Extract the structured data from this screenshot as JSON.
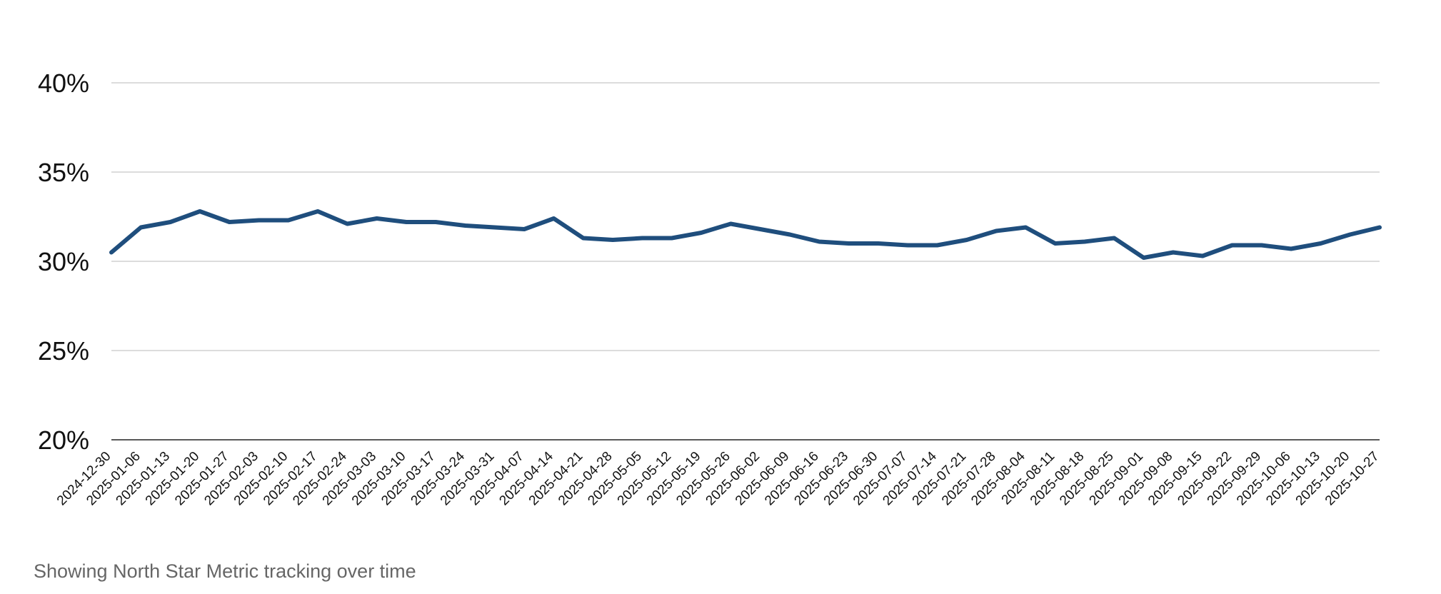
{
  "caption": "Showing North Star Metric tracking over time",
  "colors": {
    "series": "#1f4e7d",
    "grid": "#c8c8c8",
    "axis": "#222222"
  },
  "chart_data": {
    "type": "line",
    "title": "",
    "xlabel": "",
    "ylabel": "",
    "ylim": [
      20,
      40
    ],
    "yticks": [
      20,
      25,
      30,
      35,
      40
    ],
    "y_format": "percent",
    "grid": true,
    "x": [
      "2024-12-30",
      "2025-01-06",
      "2025-01-13",
      "2025-01-20",
      "2025-01-27",
      "2025-02-03",
      "2025-02-10",
      "2025-02-17",
      "2025-02-24",
      "2025-03-03",
      "2025-03-10",
      "2025-03-17",
      "2025-03-24",
      "2025-03-31",
      "2025-04-07",
      "2025-04-14",
      "2025-04-21",
      "2025-04-28",
      "2025-05-05",
      "2025-05-12",
      "2025-05-19",
      "2025-05-26",
      "2025-06-02",
      "2025-06-09",
      "2025-06-16",
      "2025-06-23",
      "2025-06-30",
      "2025-07-07",
      "2025-07-14",
      "2025-07-21",
      "2025-07-28",
      "2025-08-04",
      "2025-08-11",
      "2025-08-18",
      "2025-08-25",
      "2025-09-01",
      "2025-09-08",
      "2025-09-15",
      "2025-09-22",
      "2025-09-29",
      "2025-10-06",
      "2025-10-13",
      "2025-10-20",
      "2025-10-27"
    ],
    "series": [
      {
        "values": [
          30.5,
          31.9,
          32.2,
          32.8,
          32.2,
          32.3,
          32.3,
          32.8,
          32.1,
          32.4,
          32.2,
          32.2,
          32.0,
          31.9,
          31.8,
          32.4,
          31.3,
          31.2,
          31.3,
          31.3,
          31.6,
          32.1,
          31.8,
          31.5,
          31.1,
          31.0,
          31.0,
          30.9,
          30.9,
          31.2,
          31.7,
          31.9,
          31.0,
          31.1,
          31.3,
          30.2,
          30.5,
          30.3,
          30.9,
          30.9,
          30.7,
          31.0,
          31.5,
          31.9
        ]
      }
    ]
  }
}
